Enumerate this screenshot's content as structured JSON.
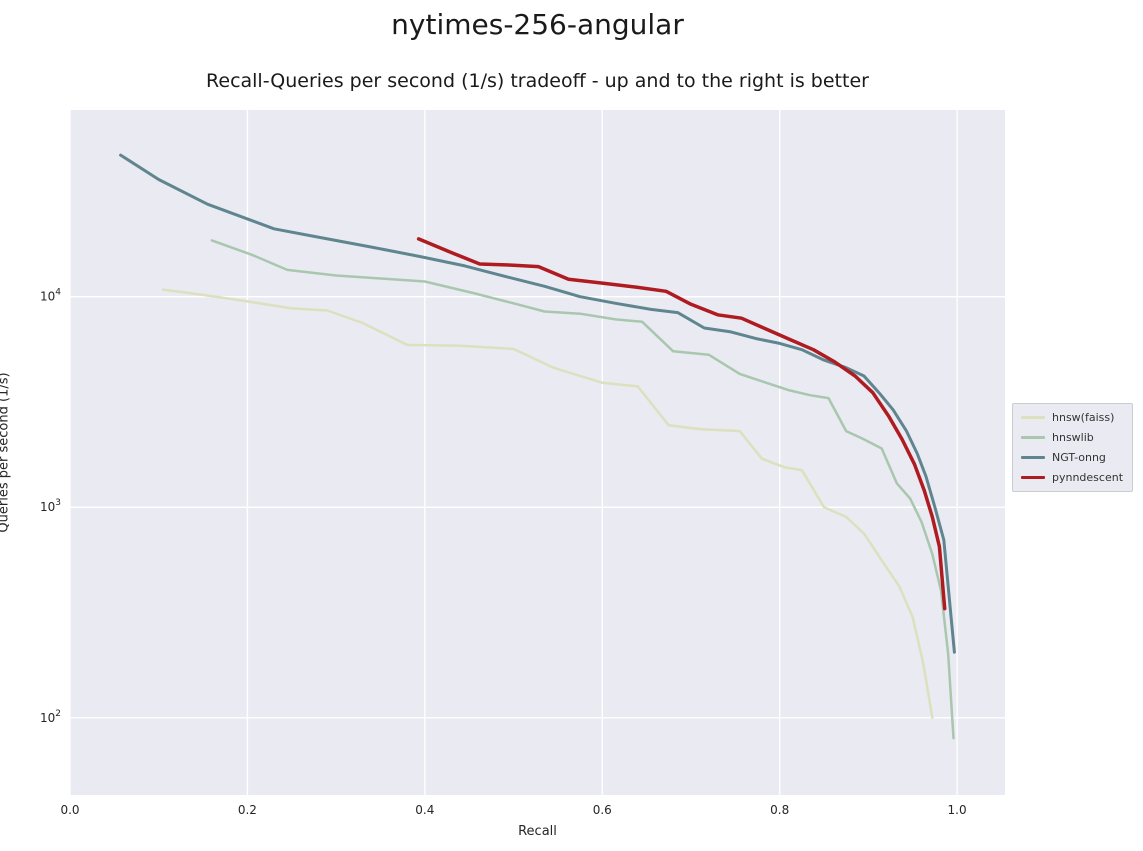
{
  "chart_data": {
    "type": "line",
    "title": "nytimes-256-angular",
    "subtitle": "Recall-Queries per second (1/s) tradeoff - up and to the right is better",
    "xlabel": "Recall",
    "ylabel": "Queries per second (1/s)",
    "xlim": [
      0,
      1.054
    ],
    "ylim": [
      43,
      77000
    ],
    "yscale": "log",
    "grid": true,
    "legend_position": "right-outside",
    "background": "#eaeaf2",
    "grid_color": "#ffffff",
    "xticks": {
      "values": [
        0.0,
        0.2,
        0.4,
        0.6,
        0.8,
        1.0
      ],
      "labels": [
        "0.0",
        "0.2",
        "0.4",
        "0.6",
        "0.8",
        "1.0"
      ]
    },
    "yticks": {
      "values": [
        100,
        1000,
        10000
      ],
      "labels": [
        "10^2",
        "10^3",
        "10^4"
      ]
    },
    "series": [
      {
        "name": "hnsw(faiss)",
        "color": "#dde0bf",
        "lw": 2.5,
        "x": [
          0.105,
          0.15,
          0.2,
          0.25,
          0.29,
          0.33,
          0.38,
          0.44,
          0.5,
          0.545,
          0.6,
          0.64,
          0.675,
          0.71,
          0.755,
          0.78,
          0.805,
          0.825,
          0.85,
          0.875,
          0.895,
          0.915,
          0.935,
          0.95,
          0.962,
          0.972
        ],
        "y": [
          10800,
          10200,
          9500,
          8800,
          8600,
          7500,
          5900,
          5850,
          5650,
          4600,
          3900,
          3750,
          2450,
          2350,
          2300,
          1700,
          1550,
          1500,
          1000,
          900,
          750,
          560,
          420,
          300,
          180,
          100
        ]
      },
      {
        "name": "hnswlib",
        "color": "#a9c6ae",
        "lw": 2.5,
        "x": [
          0.16,
          0.205,
          0.245,
          0.3,
          0.35,
          0.4,
          0.455,
          0.5,
          0.535,
          0.575,
          0.615,
          0.645,
          0.68,
          0.72,
          0.755,
          0.785,
          0.81,
          0.835,
          0.855,
          0.875,
          0.895,
          0.915,
          0.932,
          0.947,
          0.96,
          0.972,
          0.982,
          0.99,
          0.996
        ],
        "y": [
          18500,
          15800,
          13400,
          12600,
          12200,
          11800,
          10400,
          9300,
          8500,
          8300,
          7800,
          7600,
          5500,
          5300,
          4300,
          3900,
          3600,
          3400,
          3300,
          2300,
          2100,
          1900,
          1300,
          1100,
          850,
          600,
          400,
          200,
          80
        ]
      },
      {
        "name": "NGT-onng",
        "color": "#5f868f",
        "lw": 3,
        "x": [
          0.057,
          0.1,
          0.155,
          0.23,
          0.285,
          0.34,
          0.395,
          0.445,
          0.49,
          0.535,
          0.575,
          0.615,
          0.655,
          0.685,
          0.715,
          0.745,
          0.775,
          0.8,
          0.825,
          0.85,
          0.875,
          0.895,
          0.912,
          0.928,
          0.943,
          0.955,
          0.965,
          0.975,
          0.985,
          0.997
        ],
        "y": [
          47000,
          36000,
          27500,
          21000,
          19000,
          17200,
          15500,
          14000,
          12500,
          11200,
          10000,
          9300,
          8700,
          8400,
          7100,
          6800,
          6300,
          6000,
          5600,
          5000,
          4600,
          4200,
          3500,
          2900,
          2300,
          1800,
          1400,
          1000,
          700,
          205
        ]
      },
      {
        "name": "pynndescent",
        "color": "#ae1c21",
        "lw": 3.5,
        "x": [
          0.393,
          0.43,
          0.462,
          0.5,
          0.528,
          0.562,
          0.6,
          0.638,
          0.672,
          0.7,
          0.73,
          0.757,
          0.782,
          0.81,
          0.838,
          0.862,
          0.885,
          0.905,
          0.923,
          0.938,
          0.952,
          0.963,
          0.972,
          0.98,
          0.986
        ],
        "y": [
          18800,
          16200,
          14300,
          14100,
          13900,
          12100,
          11600,
          11100,
          10600,
          9200,
          8200,
          7900,
          7100,
          6300,
          5600,
          4900,
          4200,
          3500,
          2700,
          2100,
          1600,
          1200,
          900,
          650,
          330
        ]
      }
    ]
  }
}
